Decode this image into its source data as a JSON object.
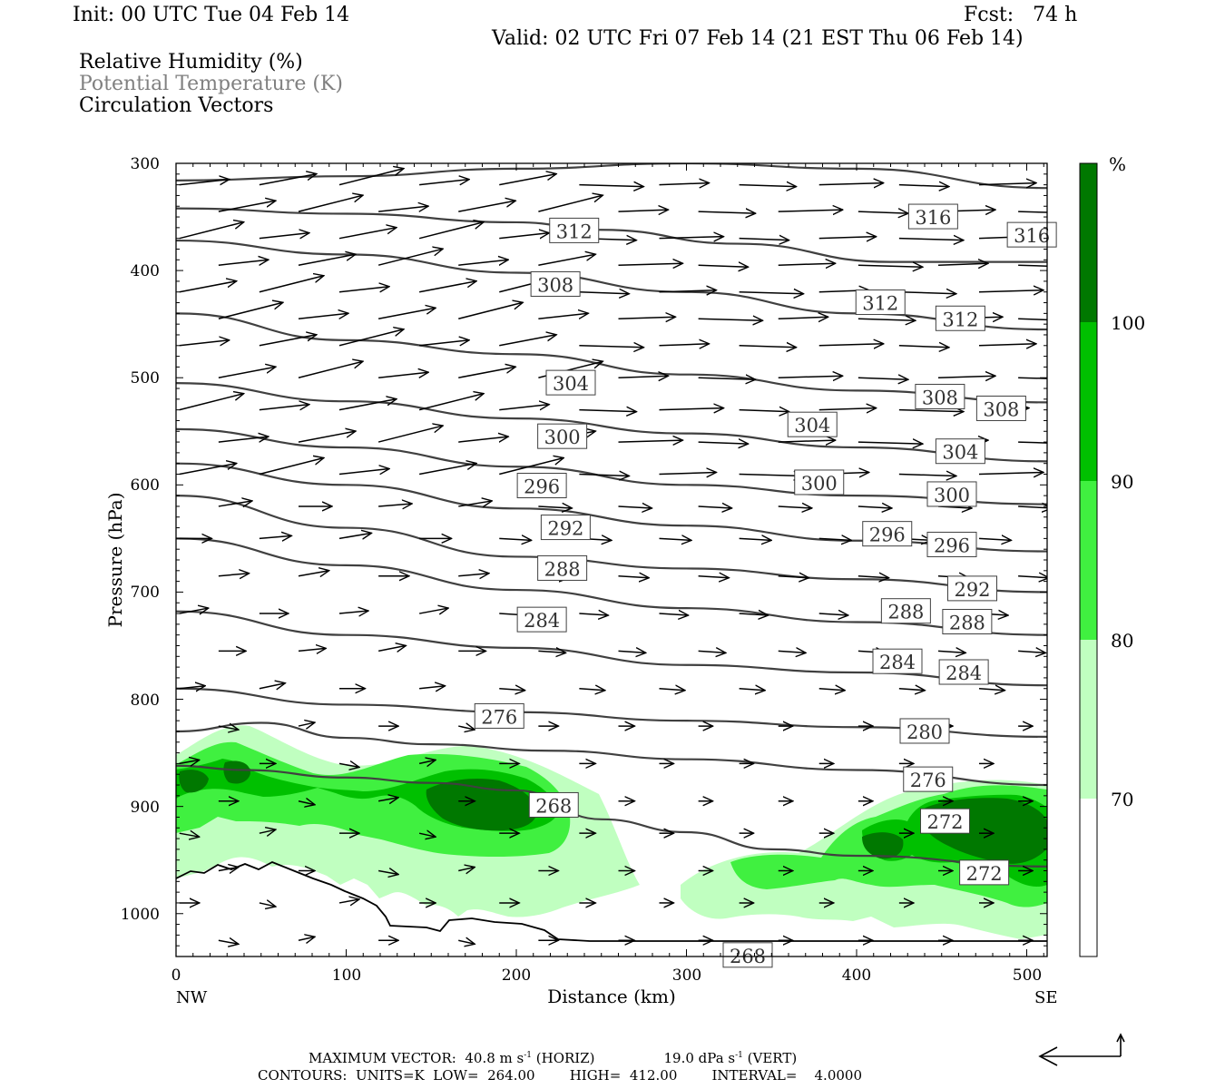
{
  "header": {
    "init": "Init: 00 UTC Tue 04 Feb 14",
    "fcst": "Fcst:   74 h",
    "valid": "Valid: 02 UTC Fri 07 Feb 14 (21 EST Thu 06 Feb 14)",
    "legend_rh": "Relative Humidity (%)",
    "legend_theta": "Potential Temperature (K)",
    "legend_vec": "Circulation Vectors"
  },
  "footer": {
    "line1_a": "MAXIMUM VECTOR:  40.8 m s",
    "line1_b": "-1",
    "line1_c": " (HORIZ)",
    "line1_d": "19.0 dPa s",
    "line1_e": "-1",
    "line1_f": " (VERT)",
    "line2": "CONTOURS:  UNITS=K  LOW=  264.00        HIGH=  412.00        INTERVAL=    4.0000"
  },
  "colors": {
    "rh_70_80": "#c0ffc0",
    "rh_80_90": "#40f040",
    "rh_90_100": "#00c000",
    "rh_100": "#007800",
    "contour": "#404040"
  },
  "chart_data": {
    "type": "cross-section",
    "ylabel": "Pressure (hPa)",
    "xlabel": "Distance (km)",
    "x_left_label": "NW",
    "x_right_label": "SE",
    "xlim": [
      0,
      512
    ],
    "ylim": [
      1040,
      300
    ],
    "x_ticks": [
      0,
      100,
      200,
      300,
      400,
      500
    ],
    "y_ticks": [
      300,
      400,
      500,
      600,
      700,
      800,
      900,
      1000
    ],
    "colorbar": {
      "unit": "%",
      "levels": [
        70,
        80,
        90,
        100
      ],
      "tick_labels": [
        "100",
        "90",
        "80",
        "70"
      ]
    },
    "theta_contours": [
      {
        "label": "316",
        "points": [
          [
            0,
            316
          ],
          [
            100,
            312
          ],
          [
            200,
            305
          ],
          [
            300,
            300
          ],
          [
            400,
            305
          ],
          [
            512,
            323
          ]
        ]
      },
      {
        "label": "312",
        "points": [
          [
            0,
            342
          ],
          [
            100,
            347
          ],
          [
            200,
            355
          ],
          [
            250,
            362
          ],
          [
            330,
            375
          ],
          [
            420,
            392
          ],
          [
            512,
            392
          ]
        ]
      },
      {
        "label": "308",
        "points": [
          [
            0,
            372
          ],
          [
            100,
            385
          ],
          [
            200,
            402
          ],
          [
            300,
            420
          ],
          [
            400,
            440
          ],
          [
            512,
            455
          ]
        ]
      },
      {
        "label": "304",
        "points": [
          [
            0,
            440
          ],
          [
            100,
            465
          ],
          [
            200,
            478
          ],
          [
            300,
            497
          ],
          [
            400,
            512
          ],
          [
            512,
            523
          ]
        ]
      },
      {
        "label": "300",
        "points": [
          [
            0,
            505
          ],
          [
            100,
            522
          ],
          [
            200,
            538
          ],
          [
            300,
            552
          ],
          [
            400,
            565
          ],
          [
            512,
            578
          ]
        ]
      },
      {
        "label": "296",
        "points": [
          [
            0,
            548
          ],
          [
            100,
            565
          ],
          [
            200,
            583
          ],
          [
            300,
            600
          ],
          [
            400,
            610
          ],
          [
            512,
            618
          ]
        ]
      },
      {
        "label": "292",
        "points": [
          [
            0,
            580
          ],
          [
            100,
            600
          ],
          [
            200,
            622
          ],
          [
            300,
            638
          ],
          [
            400,
            652
          ],
          [
            512,
            662
          ]
        ]
      },
      {
        "label": "288",
        "points": [
          [
            0,
            610
          ],
          [
            100,
            640
          ],
          [
            200,
            667
          ],
          [
            300,
            678
          ],
          [
            400,
            688
          ],
          [
            512,
            700
          ]
        ]
      },
      {
        "label": "284",
        "points": [
          [
            0,
            650
          ],
          [
            100,
            675
          ],
          [
            200,
            698
          ],
          [
            300,
            715
          ],
          [
            400,
            728
          ],
          [
            512,
            740
          ]
        ]
      },
      {
        "label": "280",
        "points": [
          [
            0,
            718
          ],
          [
            100,
            740
          ],
          [
            200,
            752
          ],
          [
            300,
            768
          ],
          [
            400,
            775
          ],
          [
            512,
            787
          ]
        ]
      },
      {
        "label": "276",
        "points": [
          [
            0,
            790
          ],
          [
            100,
            805
          ],
          [
            200,
            812
          ],
          [
            300,
            820
          ],
          [
            400,
            826
          ],
          [
            512,
            835
          ]
        ]
      },
      {
        "label": "272",
        "points": [
          [
            0,
            830
          ],
          [
            50,
            822
          ],
          [
            100,
            836
          ],
          [
            150,
            842
          ],
          [
            220,
            848
          ],
          [
            300,
            856
          ],
          [
            400,
            866
          ],
          [
            512,
            880
          ]
        ]
      },
      {
        "label": "268",
        "points": [
          [
            0,
            862
          ],
          [
            40,
            866
          ],
          [
            100,
            873
          ],
          [
            150,
            878
          ],
          [
            200,
            885
          ],
          [
            250,
            912
          ],
          [
            300,
            924
          ],
          [
            350,
            940
          ],
          [
            400,
            946
          ],
          [
            512,
            956
          ]
        ]
      }
    ],
    "contour_labels": [
      {
        "text": "312",
        "x": 234,
        "p": 363
      },
      {
        "text": "316",
        "x": 445,
        "p": 350
      },
      {
        "text": "316",
        "x": 503,
        "p": 367
      },
      {
        "text": "308",
        "x": 223,
        "p": 413
      },
      {
        "text": "312",
        "x": 414,
        "p": 430
      },
      {
        "text": "312",
        "x": 461,
        "p": 445
      },
      {
        "text": "304",
        "x": 232,
        "p": 505
      },
      {
        "text": "308",
        "x": 449,
        "p": 518
      },
      {
        "text": "308",
        "x": 485,
        "p": 529
      },
      {
        "text": "300",
        "x": 227,
        "p": 555
      },
      {
        "text": "304",
        "x": 374,
        "p": 544
      },
      {
        "text": "304",
        "x": 461,
        "p": 569
      },
      {
        "text": "296",
        "x": 215,
        "p": 601
      },
      {
        "text": "300",
        "x": 378,
        "p": 598
      },
      {
        "text": "300",
        "x": 456,
        "p": 609
      },
      {
        "text": "292",
        "x": 229,
        "p": 640
      },
      {
        "text": "296",
        "x": 418,
        "p": 646
      },
      {
        "text": "296",
        "x": 456,
        "p": 656
      },
      {
        "text": "288",
        "x": 227,
        "p": 678
      },
      {
        "text": "292",
        "x": 468,
        "p": 697
      },
      {
        "text": "284",
        "x": 215,
        "p": 726
      },
      {
        "text": "288",
        "x": 429,
        "p": 718
      },
      {
        "text": "288",
        "x": 465,
        "p": 728
      },
      {
        "text": "284",
        "x": 424,
        "p": 765
      },
      {
        "text": "284",
        "x": 463,
        "p": 775
      },
      {
        "text": "276",
        "x": 190,
        "p": 816
      },
      {
        "text": "280",
        "x": 440,
        "p": 830
      },
      {
        "text": "276",
        "x": 442,
        "p": 875
      },
      {
        "text": "268",
        "x": 222,
        "p": 899
      },
      {
        "text": "272",
        "x": 452,
        "p": 914
      },
      {
        "text": "272",
        "x": 475,
        "p": 962
      },
      {
        "text": "268",
        "x": 336,
        "p": 1039
      }
    ]
  }
}
